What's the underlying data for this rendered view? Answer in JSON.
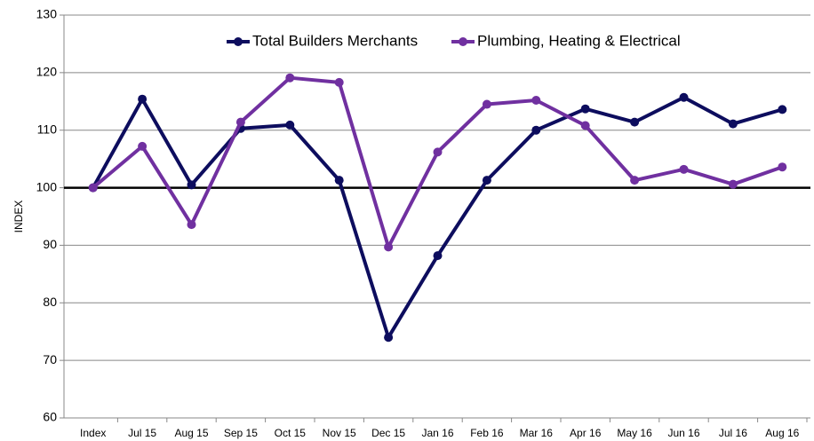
{
  "chart_data": {
    "type": "line",
    "y_label": "INDEX",
    "categories": [
      "Index",
      "Jul 15",
      "Aug 15",
      "Sep 15",
      "Oct 15",
      "Nov 15",
      "Dec 15",
      "Jan 16",
      "Feb 16",
      "Mar 16",
      "Apr 16",
      "May 16",
      "Jun 16",
      "Jul 16",
      "Aug 16"
    ],
    "series": [
      {
        "name": "Total Builders Merchants",
        "color": "#0d0d5e",
        "values": [
          100,
          115.4,
          100.5,
          110.3,
          110.9,
          101.3,
          74,
          88.2,
          101.3,
          110,
          113.7,
          111.4,
          115.7,
          111.1,
          113.6
        ]
      },
      {
        "name": "Plumbing, Heating & Electrical",
        "color": "#7030a0",
        "values": [
          100,
          107.2,
          93.6,
          111.4,
          119.1,
          118.3,
          89.7,
          106.2,
          114.5,
          115.2,
          110.8,
          101.3,
          103.2,
          100.6,
          103.6
        ]
      }
    ],
    "ylim": [
      60,
      130
    ],
    "yticks": [
      60,
      70,
      80,
      90,
      100,
      110,
      120,
      130
    ],
    "grid": true,
    "reference_line": 100,
    "legend": "top"
  }
}
